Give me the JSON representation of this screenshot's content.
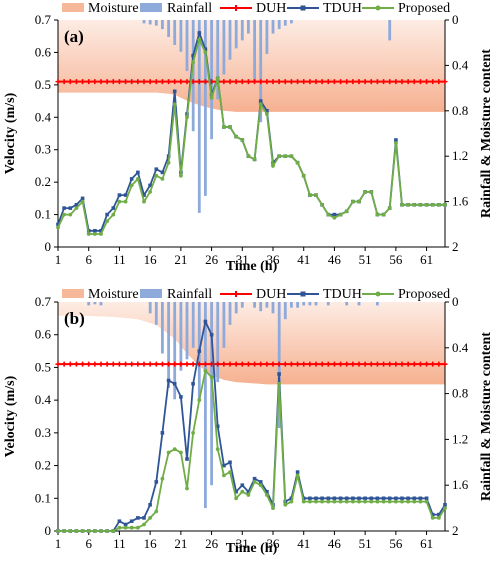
{
  "chart_data": [
    {
      "type": "line",
      "panel_label": "(a)",
      "xlabel": "Time (h)",
      "ylabel": "Velocity (m/s)",
      "y2label": "Rainfall & Moisture content",
      "xlim": [
        1,
        64
      ],
      "ylim": [
        0,
        0.7
      ],
      "y2lim": [
        0,
        2
      ],
      "y2_inverted": true,
      "x_ticks": [
        1,
        6,
        11,
        16,
        21,
        26,
        31,
        36,
        41,
        46,
        51,
        56,
        61
      ],
      "y_ticks": [
        0,
        0.1,
        0.2,
        0.3,
        0.4,
        0.5,
        0.6,
        0.7
      ],
      "y2_ticks": [
        0,
        0.4,
        0.8,
        1.2,
        1.6,
        2
      ],
      "grid": false,
      "legend": [
        "Moisture",
        "Rainfall",
        "DUH",
        "TDUH",
        "Proposed"
      ],
      "legend_position": "top",
      "colors": {
        "moisture": "#f2a47d",
        "rainfall": "#8eaadb",
        "DUH": "#ff0000",
        "TDUH": "#2f5597",
        "Proposed": "#70ad47"
      },
      "moisture": [
        [
          1,
          0.64
        ],
        [
          5,
          0.64
        ],
        [
          10,
          0.64
        ],
        [
          15,
          0.64
        ],
        [
          17,
          0.64
        ],
        [
          19,
          0.65
        ],
        [
          20,
          0.66
        ],
        [
          22,
          0.71
        ],
        [
          24,
          0.75
        ],
        [
          26,
          0.78
        ],
        [
          28,
          0.8
        ],
        [
          30,
          0.81
        ],
        [
          35,
          0.81
        ],
        [
          40,
          0.81
        ],
        [
          50,
          0.81
        ],
        [
          64,
          0.81
        ]
      ],
      "rainfall": [
        [
          15,
          0.03
        ],
        [
          16,
          0.04
        ],
        [
          17,
          0.05
        ],
        [
          18,
          0.08
        ],
        [
          19,
          0.15
        ],
        [
          20,
          0.22
        ],
        [
          21,
          0.28
        ],
        [
          22,
          0.45
        ],
        [
          23,
          0.98
        ],
        [
          24,
          1.7
        ],
        [
          25,
          1.55
        ],
        [
          26,
          1.05
        ],
        [
          27,
          0.7
        ],
        [
          28,
          0.48
        ],
        [
          29,
          0.35
        ],
        [
          30,
          0.25
        ],
        [
          31,
          0.18
        ],
        [
          32,
          0.12
        ],
        [
          33,
          0.55
        ],
        [
          34,
          0.9
        ],
        [
          35,
          0.3
        ],
        [
          36,
          0.12
        ],
        [
          37,
          0.08
        ],
        [
          38,
          0.05
        ],
        [
          39,
          0.03
        ],
        [
          55,
          0.18
        ]
      ],
      "series": [
        {
          "name": "DUH",
          "x": [
            1,
            64
          ],
          "y": [
            0.51,
            0.51
          ]
        },
        {
          "name": "TDUH",
          "x": [
            1,
            2,
            3,
            4,
            5,
            6,
            7,
            8,
            9,
            10,
            11,
            12,
            13,
            14,
            15,
            16,
            17,
            18,
            19,
            20,
            21,
            22,
            23,
            24,
            25,
            26,
            27,
            28,
            29,
            30,
            31,
            32,
            33,
            34,
            35,
            36,
            37,
            38,
            39,
            40,
            41,
            42,
            43,
            44,
            45,
            46,
            47,
            48,
            49,
            50,
            51,
            52,
            53,
            54,
            55,
            56,
            57,
            58,
            59,
            60,
            61,
            62,
            63,
            64
          ],
          "y": [
            0.07,
            0.12,
            0.12,
            0.13,
            0.15,
            0.05,
            0.05,
            0.05,
            0.1,
            0.12,
            0.16,
            0.16,
            0.21,
            0.23,
            0.16,
            0.19,
            0.24,
            0.23,
            0.28,
            0.48,
            0.23,
            0.41,
            0.59,
            0.66,
            0.61,
            0.47,
            0.52,
            0.37,
            0.37,
            0.34,
            0.33,
            0.28,
            0.27,
            0.45,
            0.42,
            0.26,
            0.28,
            0.28,
            0.28,
            0.26,
            0.22,
            0.16,
            0.16,
            0.13,
            0.1,
            0.1,
            0.1,
            0.11,
            0.14,
            0.14,
            0.17,
            0.17,
            0.1,
            0.1,
            0.12,
            0.33,
            0.13,
            0.13,
            0.13,
            0.13,
            0.13,
            0.13,
            0.13,
            0.13
          ]
        },
        {
          "name": "Proposed",
          "x": [
            1,
            2,
            3,
            4,
            5,
            6,
            7,
            8,
            9,
            10,
            11,
            12,
            13,
            14,
            15,
            16,
            17,
            18,
            19,
            20,
            21,
            22,
            23,
            24,
            25,
            26,
            27,
            28,
            29,
            30,
            31,
            32,
            33,
            34,
            35,
            36,
            37,
            38,
            39,
            40,
            41,
            42,
            43,
            44,
            45,
            46,
            47,
            48,
            49,
            50,
            51,
            52,
            53,
            54,
            55,
            56,
            57,
            58,
            59,
            60,
            61,
            62,
            63,
            64
          ],
          "y": [
            0.06,
            0.1,
            0.1,
            0.12,
            0.14,
            0.04,
            0.04,
            0.04,
            0.08,
            0.1,
            0.14,
            0.14,
            0.19,
            0.21,
            0.14,
            0.17,
            0.22,
            0.21,
            0.26,
            0.44,
            0.22,
            0.4,
            0.57,
            0.64,
            0.6,
            0.46,
            0.52,
            0.37,
            0.37,
            0.34,
            0.33,
            0.28,
            0.27,
            0.44,
            0.41,
            0.25,
            0.28,
            0.28,
            0.28,
            0.26,
            0.22,
            0.16,
            0.16,
            0.13,
            0.1,
            0.09,
            0.1,
            0.11,
            0.14,
            0.14,
            0.17,
            0.17,
            0.1,
            0.1,
            0.12,
            0.32,
            0.13,
            0.13,
            0.13,
            0.13,
            0.13,
            0.13,
            0.13,
            0.13
          ]
        }
      ]
    },
    {
      "type": "line",
      "panel_label": "(b)",
      "xlabel": "Time (h)",
      "ylabel": "Velocity (m/s)",
      "y2label": "Rainfall & Moisture content",
      "xlim": [
        1,
        64
      ],
      "ylim": [
        0,
        0.7
      ],
      "y2lim": [
        0,
        2
      ],
      "y2_inverted": true,
      "x_ticks": [
        1,
        6,
        11,
        16,
        21,
        26,
        31,
        36,
        41,
        46,
        51,
        56,
        61
      ],
      "y_ticks": [
        0,
        0.1,
        0.2,
        0.3,
        0.4,
        0.5,
        0.6,
        0.7
      ],
      "y2_ticks": [
        0,
        0.4,
        0.8,
        1.2,
        1.6,
        2
      ],
      "grid": false,
      "legend": [
        "Moisture",
        "Rainfall",
        "DUH",
        "TDUH",
        "Proposed"
      ],
      "legend_position": "top",
      "colors": {
        "moisture": "#f2a47d",
        "rainfall": "#8eaadb",
        "DUH": "#ff0000",
        "TDUH": "#2f5597",
        "Proposed": "#70ad47"
      },
      "moisture": [
        [
          1,
          0.12
        ],
        [
          5,
          0.12
        ],
        [
          10,
          0.13
        ],
        [
          14,
          0.15
        ],
        [
          17,
          0.2
        ],
        [
          20,
          0.32
        ],
        [
          22,
          0.45
        ],
        [
          24,
          0.56
        ],
        [
          26,
          0.64
        ],
        [
          28,
          0.68
        ],
        [
          30,
          0.7
        ],
        [
          35,
          0.72
        ],
        [
          40,
          0.72
        ],
        [
          50,
          0.72
        ],
        [
          64,
          0.72
        ]
      ],
      "rainfall": [
        [
          6,
          0.03
        ],
        [
          7,
          0.02
        ],
        [
          8,
          0.03
        ],
        [
          16,
          0.1
        ],
        [
          17,
          0.2
        ],
        [
          18,
          0.45
        ],
        [
          19,
          0.75
        ],
        [
          20,
          0.85
        ],
        [
          21,
          0.6
        ],
        [
          22,
          0.5
        ],
        [
          23,
          0.4
        ],
        [
          24,
          0.85
        ],
        [
          25,
          1.8
        ],
        [
          26,
          1.6
        ],
        [
          27,
          0.7
        ],
        [
          28,
          0.4
        ],
        [
          29,
          0.2
        ],
        [
          30,
          0.1
        ],
        [
          31,
          0.05
        ],
        [
          33,
          0.05
        ],
        [
          34,
          0.08
        ],
        [
          35,
          0.05
        ],
        [
          36,
          0.1
        ],
        [
          37,
          1.1
        ],
        [
          38,
          0.15
        ],
        [
          39,
          0.05
        ],
        [
          40,
          0.05
        ],
        [
          41,
          0.03
        ],
        [
          42,
          0.03
        ],
        [
          43,
          0.03
        ],
        [
          45,
          0.03
        ],
        [
          48,
          0.03
        ],
        [
          50,
          0.03
        ],
        [
          53,
          0.03
        ]
      ],
      "series": [
        {
          "name": "DUH",
          "x": [
            1,
            64
          ],
          "y": [
            0.51,
            0.51
          ]
        },
        {
          "name": "TDUH",
          "x": [
            1,
            2,
            3,
            4,
            5,
            6,
            7,
            8,
            9,
            10,
            11,
            12,
            13,
            14,
            15,
            16,
            17,
            18,
            19,
            20,
            21,
            22,
            23,
            24,
            25,
            26,
            27,
            28,
            29,
            30,
            31,
            32,
            33,
            34,
            35,
            36,
            37,
            38,
            39,
            40,
            41,
            42,
            43,
            44,
            45,
            46,
            47,
            48,
            49,
            50,
            51,
            52,
            53,
            54,
            55,
            56,
            57,
            58,
            59,
            60,
            61,
            62,
            63,
            64
          ],
          "y": [
            0,
            0,
            0,
            0,
            0,
            0,
            0,
            0,
            0,
            0,
            0.03,
            0.02,
            0.03,
            0.04,
            0.04,
            0.08,
            0.15,
            0.3,
            0.46,
            0.45,
            0.41,
            0.22,
            0.45,
            0.55,
            0.64,
            0.6,
            0.32,
            0.2,
            0.21,
            0.12,
            0.14,
            0.12,
            0.16,
            0.15,
            0.12,
            0.08,
            0.48,
            0.09,
            0.1,
            0.18,
            0.1,
            0.1,
            0.1,
            0.1,
            0.1,
            0.1,
            0.1,
            0.1,
            0.1,
            0.1,
            0.1,
            0.1,
            0.1,
            0.1,
            0.1,
            0.1,
            0.1,
            0.1,
            0.1,
            0.1,
            0.1,
            0.05,
            0.05,
            0.08
          ]
        },
        {
          "name": "Proposed",
          "x": [
            1,
            2,
            3,
            4,
            5,
            6,
            7,
            8,
            9,
            10,
            11,
            12,
            13,
            14,
            15,
            16,
            17,
            18,
            19,
            20,
            21,
            22,
            23,
            24,
            25,
            26,
            27,
            28,
            29,
            30,
            31,
            32,
            33,
            34,
            35,
            36,
            37,
            38,
            39,
            40,
            41,
            42,
            43,
            44,
            45,
            46,
            47,
            48,
            49,
            50,
            51,
            52,
            53,
            54,
            55,
            56,
            57,
            58,
            59,
            60,
            61,
            62,
            63,
            64
          ],
          "y": [
            0,
            0,
            0,
            0,
            0,
            0,
            0,
            0,
            0,
            0,
            0.01,
            0.01,
            0.01,
            0.01,
            0.02,
            0.04,
            0.06,
            0.16,
            0.24,
            0.25,
            0.24,
            0.13,
            0.3,
            0.4,
            0.49,
            0.47,
            0.25,
            0.17,
            0.18,
            0.1,
            0.12,
            0.11,
            0.15,
            0.14,
            0.11,
            0.07,
            0.45,
            0.08,
            0.09,
            0.17,
            0.09,
            0.09,
            0.09,
            0.09,
            0.09,
            0.09,
            0.09,
            0.09,
            0.09,
            0.09,
            0.09,
            0.09,
            0.09,
            0.09,
            0.09,
            0.09,
            0.09,
            0.09,
            0.09,
            0.09,
            0.09,
            0.04,
            0.04,
            0.07
          ]
        }
      ]
    }
  ]
}
